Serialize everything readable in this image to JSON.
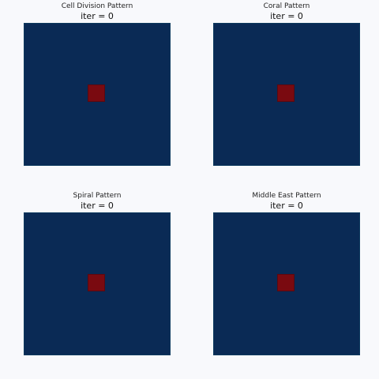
{
  "chart_data": [
    {
      "type": "heatmap",
      "title": "Cell Division Pattern",
      "subtitle": "iter = 0",
      "background_value": 0,
      "seed_value": 1,
      "seed_fraction": [
        0.44,
        0.56
      ]
    },
    {
      "type": "heatmap",
      "title": "Coral Pattern",
      "subtitle": "iter = 0",
      "background_value": 0,
      "seed_value": 1,
      "seed_fraction": [
        0.44,
        0.56
      ]
    },
    {
      "type": "heatmap",
      "title": "Spiral Pattern",
      "subtitle": "iter = 0",
      "background_value": 0,
      "seed_value": 1,
      "seed_fraction": [
        0.44,
        0.56
      ]
    },
    {
      "type": "heatmap",
      "title": "Middle East Pattern",
      "subtitle": "iter = 0",
      "background_value": 0,
      "seed_value": 1,
      "seed_fraction": [
        0.44,
        0.56
      ]
    }
  ],
  "colors": {
    "low": "#0a2a55",
    "high": "#7a0a10"
  }
}
